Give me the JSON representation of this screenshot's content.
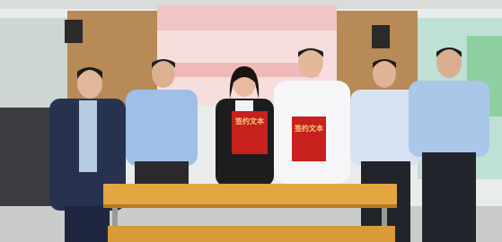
{
  "folders": [
    {
      "label": "签约文本"
    },
    {
      "label": "签约文本"
    }
  ]
}
